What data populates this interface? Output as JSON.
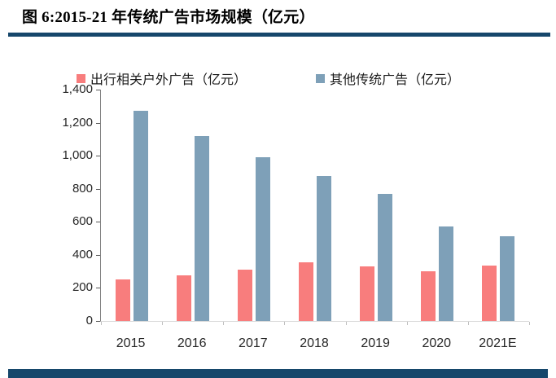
{
  "header": {
    "title": "图 6:2015-21 年传统广告市场规模（亿元）"
  },
  "colors": {
    "rule_navy": "#16476B",
    "series1_red": "#F87D7D",
    "series2_blue": "#7EA0B8"
  },
  "chart_data": {
    "type": "bar",
    "title": "图 6:2015-21 年传统广告市场规模（亿元）",
    "categories": [
      "2015",
      "2016",
      "2017",
      "2018",
      "2019",
      "2020",
      "2021E"
    ],
    "series": [
      {
        "name": "出行相关户外广告（亿元）",
        "color": "#F87D7D",
        "values": [
          250,
          275,
          310,
          355,
          330,
          300,
          335
        ]
      },
      {
        "name": "其他传统广告（亿元）",
        "color": "#7EA0B8",
        "values": [
          1270,
          1120,
          990,
          880,
          770,
          570,
          515
        ]
      }
    ],
    "xlabel": "",
    "ylabel": "",
    "ylim": [
      0,
      1400
    ],
    "ytick_step": 200,
    "ytick_labels": [
      "0",
      "200",
      "400",
      "600",
      "800",
      "1,000",
      "1,200",
      "1,400"
    ],
    "legend_position": "top",
    "grid": false
  }
}
